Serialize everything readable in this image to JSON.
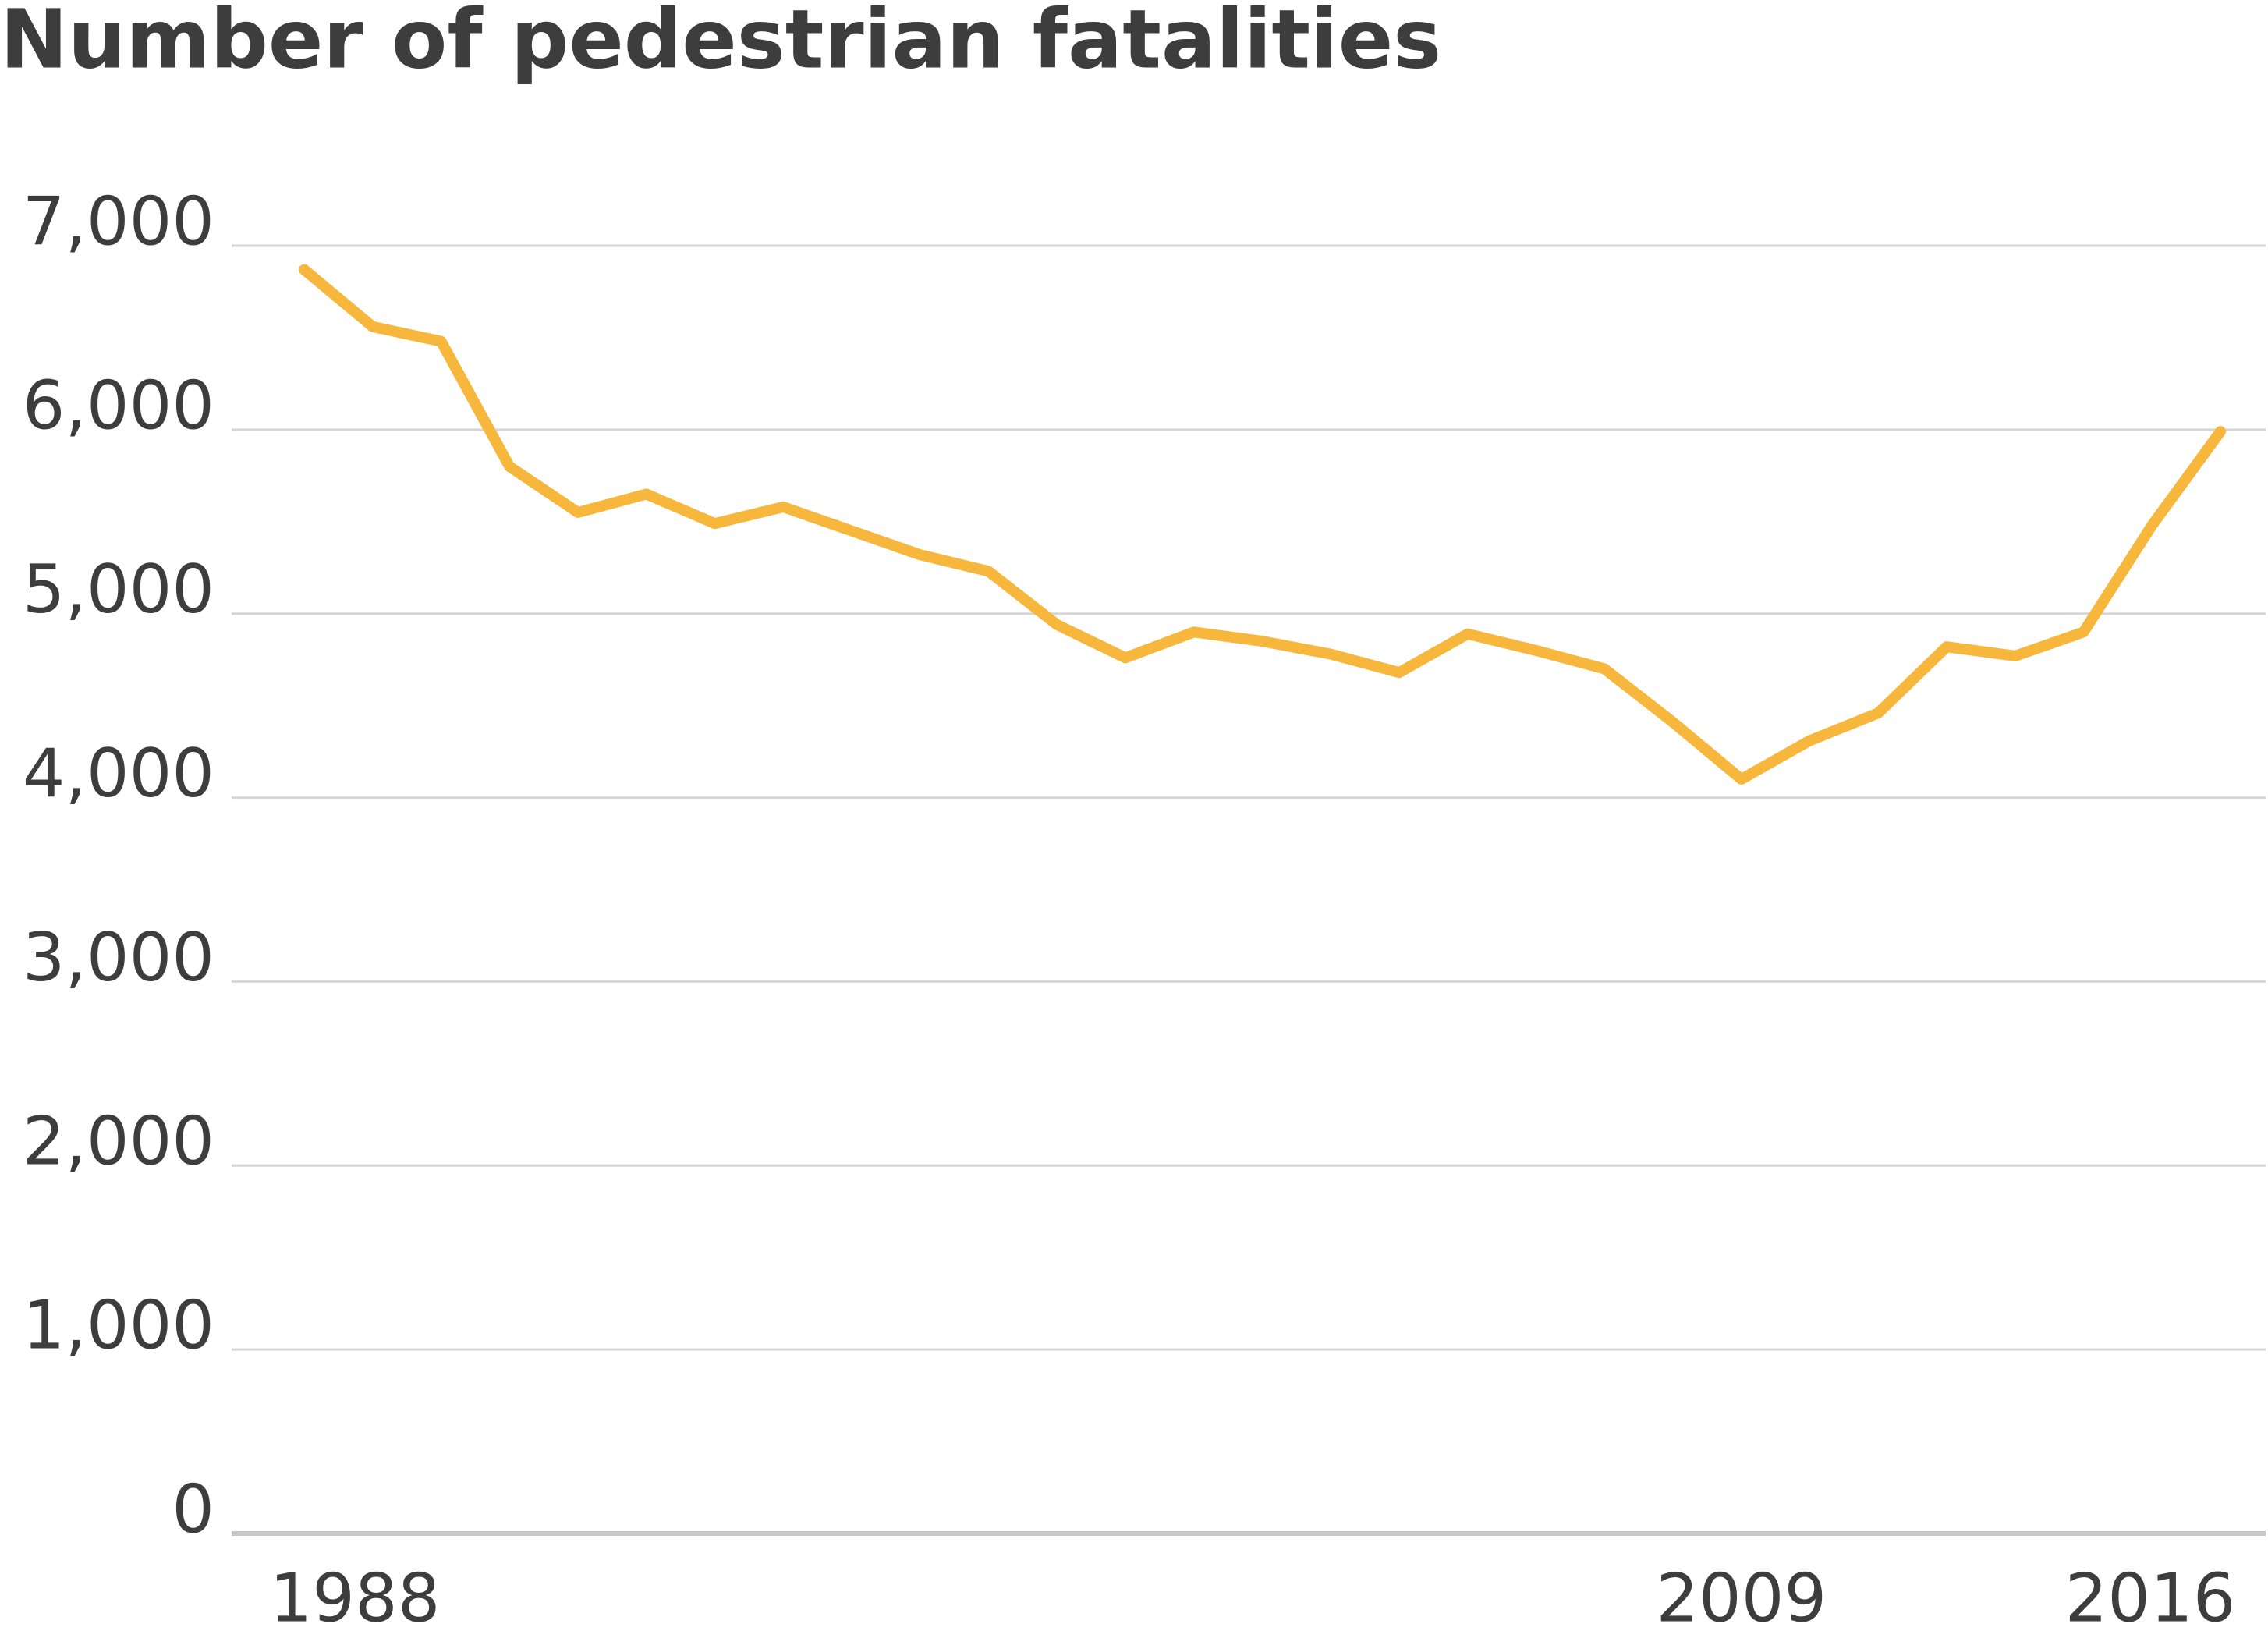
{
  "chart_data": {
    "type": "line",
    "title": "Number of pedestrian fatalities",
    "x": [
      1988,
      1989,
      1990,
      1991,
      1992,
      1993,
      1994,
      1995,
      1996,
      1997,
      1998,
      1999,
      2000,
      2001,
      2002,
      2003,
      2004,
      2005,
      2006,
      2007,
      2008,
      2009,
      2010,
      2011,
      2012,
      2013,
      2014,
      2015,
      2016
    ],
    "series": [
      {
        "name": "Pedestrian fatalities",
        "color": "#f6b73c",
        "values": [
          6870,
          6560,
          6480,
          5800,
          5550,
          5650,
          5490,
          5580,
          5450,
          5320,
          5230,
          4940,
          4760,
          4900,
          4850,
          4780,
          4680,
          4890,
          4800,
          4700,
          4410,
          4100,
          4310,
          4460,
          4820,
          4770,
          4900,
          5480,
          5990
        ]
      }
    ],
    "xlim": [
      1988,
      2016
    ],
    "xticks": [
      1988,
      2009,
      2016
    ],
    "ylim": [
      0,
      7000
    ],
    "yticks": [
      0,
      {
        "value": 1000,
        "label": "1,000"
      },
      {
        "value": 2000,
        "label": "2,000"
      },
      {
        "value": 3000,
        "label": "3,000"
      },
      {
        "value": 4000,
        "label": "4,000"
      },
      {
        "value": 5000,
        "label": "5,000"
      },
      {
        "value": 6000,
        "label": "6,000"
      },
      {
        "value": 7000,
        "label": "7,000"
      }
    ],
    "grid": true
  }
}
